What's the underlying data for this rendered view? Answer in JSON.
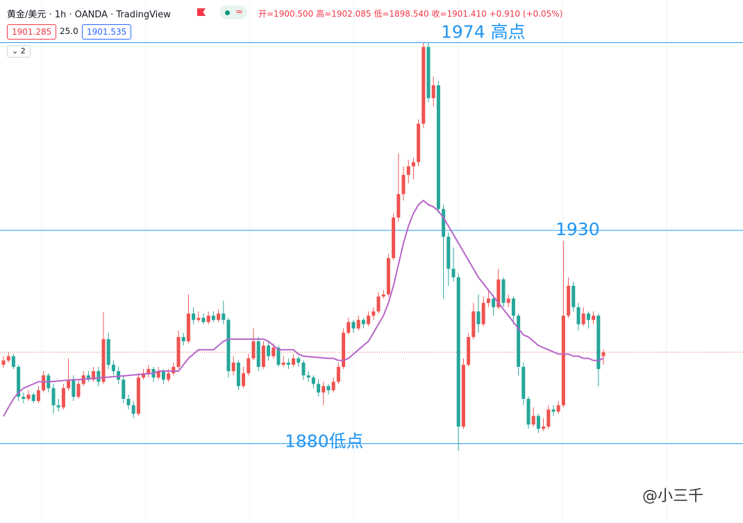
{
  "header": {
    "symbol": "黄金/美元 · 1h · OANDA · TradingView",
    "ohlc": [
      "开=1900.500",
      "高=1902.085",
      "低=1898.540",
      "收=1901.410",
      "+0.910 (+0.05%)"
    ],
    "bid": "1901.285",
    "spread": "25.0",
    "ask": "1901.535",
    "indicators": "2"
  },
  "watermark": "@小三千",
  "chart_data": {
    "type": "candlestick",
    "ylim": [
      1861.4,
      1984
    ],
    "up_color": "#ef5350",
    "down_color": "#26a69a",
    "candles": [
      [
        1898.5,
        1900.5,
        1897.8,
        1899.5
      ],
      [
        1899.5,
        1901.5,
        1899,
        1900.5
      ],
      [
        1900.5,
        1901,
        1897.5,
        1898
      ],
      [
        1898,
        1898.5,
        1890,
        1891
      ],
      [
        1891,
        1892,
        1889.5,
        1890.5
      ],
      [
        1890.5,
        1892.5,
        1890,
        1891.5
      ],
      [
        1891.5,
        1892,
        1889.5,
        1890
      ],
      [
        1890,
        1893.5,
        1889.5,
        1892.5
      ],
      [
        1892.5,
        1897,
        1892,
        1896
      ],
      [
        1896,
        1896.5,
        1892,
        1893
      ],
      [
        1893,
        1894,
        1887,
        1889
      ],
      [
        1889,
        1890.5,
        1887.5,
        1888.5
      ],
      [
        1888.5,
        1894,
        1888,
        1893
      ],
      [
        1893,
        1900,
        1892.5,
        1895
      ],
      [
        1895,
        1896,
        1890,
        1891
      ],
      [
        1891,
        1895,
        1890.5,
        1894
      ],
      [
        1894,
        1897,
        1893.5,
        1896
      ],
      [
        1896,
        1897,
        1894.5,
        1895
      ],
      [
        1895,
        1898,
        1894.5,
        1897
      ],
      [
        1897,
        1898,
        1893.5,
        1894.5
      ],
      [
        1894.5,
        1910.8,
        1894,
        1904.5
      ],
      [
        1904.5,
        1906,
        1897.5,
        1898.5
      ],
      [
        1898.5,
        1899.5,
        1896,
        1897
      ],
      [
        1897,
        1898,
        1894,
        1895
      ],
      [
        1895,
        1896,
        1889.5,
        1890.5
      ],
      [
        1890.5,
        1891.5,
        1888,
        1889
      ],
      [
        1889,
        1890,
        1886,
        1887
      ],
      [
        1887,
        1896.5,
        1886.5,
        1895.5
      ],
      [
        1895.5,
        1897.5,
        1895,
        1896.5
      ],
      [
        1896.5,
        1898.5,
        1895.5,
        1897.5
      ],
      [
        1897.5,
        1898,
        1894.5,
        1895.5
      ],
      [
        1895.5,
        1898,
        1895,
        1897
      ],
      [
        1897,
        1897.5,
        1894,
        1895
      ],
      [
        1895,
        1897.5,
        1894.5,
        1896.5
      ],
      [
        1896.5,
        1899,
        1896,
        1898
      ],
      [
        1898,
        1906.5,
        1897.5,
        1905
      ],
      [
        1905,
        1906,
        1903,
        1904
      ],
      [
        1904,
        1915,
        1903.5,
        1910.5
      ],
      [
        1910.5,
        1912,
        1908,
        1909
      ],
      [
        1909,
        1911,
        1908.5,
        1909.5
      ],
      [
        1909.5,
        1910.5,
        1908,
        1908.5
      ],
      [
        1908.5,
        1911,
        1908,
        1910
      ],
      [
        1910,
        1911,
        1908.5,
        1909
      ],
      [
        1909,
        1911.5,
        1908.5,
        1910.5
      ],
      [
        1910.5,
        1913.5,
        1908,
        1909
      ],
      [
        1909,
        1909.5,
        1895.5,
        1897
      ],
      [
        1897,
        1900.5,
        1896,
        1899
      ],
      [
        1899,
        1899.5,
        1892.5,
        1893.5
      ],
      [
        1893.5,
        1898,
        1893,
        1896.5
      ],
      [
        1896.5,
        1901,
        1896,
        1900
      ],
      [
        1900,
        1907,
        1899.5,
        1904
      ],
      [
        1904,
        1905,
        1897,
        1898
      ],
      [
        1898,
        1904,
        1897.5,
        1903
      ],
      [
        1903,
        1904,
        1899.5,
        1900.5
      ],
      [
        1900.5,
        1903.5,
        1900,
        1902.5
      ],
      [
        1902.5,
        1903,
        1898,
        1898.5
      ],
      [
        1898.5,
        1900.5,
        1898,
        1899
      ],
      [
        1899,
        1900,
        1897.5,
        1898.5
      ],
      [
        1898.5,
        1901,
        1898,
        1900
      ],
      [
        1900,
        1900.5,
        1898,
        1899
      ],
      [
        1899,
        1899.5,
        1895,
        1896
      ],
      [
        1896,
        1897,
        1894.5,
        1895.5
      ],
      [
        1895.5,
        1896,
        1893,
        1894
      ],
      [
        1894,
        1895,
        1891,
        1892
      ],
      [
        1892,
        1894.5,
        1889,
        1893.5
      ],
      [
        1893.5,
        1894,
        1891.5,
        1892.5
      ],
      [
        1892.5,
        1895.5,
        1892,
        1894.5
      ],
      [
        1894.5,
        1899,
        1894,
        1898
      ],
      [
        1898,
        1907,
        1897.5,
        1906
      ],
      [
        1906,
        1909.5,
        1905.5,
        1908.5
      ],
      [
        1908.5,
        1909,
        1906,
        1907
      ],
      [
        1907,
        1910,
        1906.5,
        1909
      ],
      [
        1909,
        1909.5,
        1907,
        1908
      ],
      [
        1908,
        1911,
        1907.5,
        1910
      ],
      [
        1910,
        1912,
        1909,
        1911
      ],
      [
        1911,
        1915.5,
        1910.5,
        1914.5
      ],
      [
        1914.5,
        1916,
        1914,
        1915
      ],
      [
        1915,
        1924.5,
        1914.5,
        1923.5
      ],
      [
        1923.5,
        1934,
        1923,
        1933
      ],
      [
        1933,
        1948,
        1932,
        1938.5
      ],
      [
        1938.5,
        1945,
        1937,
        1943
      ],
      [
        1943,
        1946.5,
        1941,
        1945
      ],
      [
        1945,
        1947,
        1942,
        1946
      ],
      [
        1946,
        1956,
        1945,
        1955
      ],
      [
        1955,
        1974,
        1954,
        1973
      ],
      [
        1973,
        1974,
        1960,
        1961
      ],
      [
        1961,
        1966,
        1959,
        1964
      ],
      [
        1964,
        1965,
        1934,
        1935
      ],
      [
        1935,
        1936,
        1914,
        1928.5
      ],
      [
        1928.5,
        1929.5,
        1917,
        1921
      ],
      [
        1921,
        1926,
        1918,
        1919
      ],
      [
        1919,
        1920,
        1878.3,
        1884
      ],
      [
        1884,
        1900,
        1883.5,
        1898.5
      ],
      [
        1898.5,
        1906,
        1898,
        1905
      ],
      [
        1905,
        1913,
        1904.5,
        1911
      ],
      [
        1911,
        1915,
        1906,
        1908
      ],
      [
        1908,
        1914.5,
        1907.5,
        1913
      ],
      [
        1913,
        1916,
        1912,
        1914
      ],
      [
        1914,
        1915,
        1910,
        1912
      ],
      [
        1912,
        1921,
        1911.5,
        1918.5
      ],
      [
        1918.5,
        1919,
        1912,
        1913
      ],
      [
        1913,
        1915,
        1912,
        1914
      ],
      [
        1914,
        1914.5,
        1908,
        1910
      ],
      [
        1910,
        1910.5,
        1896,
        1898
      ],
      [
        1898,
        1899,
        1889,
        1890.5
      ],
      [
        1890.5,
        1891,
        1883.5,
        1884.5
      ],
      [
        1884.5,
        1888.5,
        1884,
        1886.5
      ],
      [
        1886.5,
        1887,
        1882.5,
        1883.5
      ],
      [
        1883.5,
        1886,
        1883,
        1884
      ],
      [
        1884,
        1889,
        1883.5,
        1888
      ],
      [
        1888,
        1889,
        1886.5,
        1887.5
      ],
      [
        1887.5,
        1890,
        1887,
        1889
      ],
      [
        1889,
        1927.5,
        1888.5,
        1910
      ],
      [
        1910,
        1919,
        1909.5,
        1917
      ],
      [
        1917,
        1918,
        1911,
        1912
      ],
      [
        1912,
        1913,
        1906.5,
        1908
      ],
      [
        1908,
        1912,
        1907.5,
        1910.5
      ],
      [
        1910.5,
        1911,
        1907,
        1909
      ],
      [
        1909,
        1911,
        1908,
        1910
      ],
      [
        1910,
        1910.5,
        1893.5,
        1897.5
      ],
      [
        1900.5,
        1902.085,
        1898.54,
        1901.41
      ]
    ],
    "ma": {
      "color": "#b763c9",
      "values": [
        1886.4,
        1888.5,
        1890.5,
        1892,
        1893,
        1893.5,
        1894,
        1894.5,
        1894.5,
        1894.5,
        1894.6,
        1894.7,
        1894.8,
        1894.9,
        1895,
        1895,
        1895.1,
        1895.2,
        1895.3,
        1895.4,
        1895.5,
        1895.6,
        1895.7,
        1895.8,
        1895.9,
        1896,
        1896.1,
        1896.2,
        1896.3,
        1896.4,
        1896.5,
        1897,
        1897,
        1897,
        1897,
        1897,
        1898.5,
        1900,
        1901,
        1902,
        1902,
        1902,
        1902,
        1903,
        1904,
        1904.5,
        1904.5,
        1904.5,
        1904.5,
        1904.5,
        1904.5,
        1904.5,
        1904.5,
        1904,
        1903,
        1902,
        1902,
        1902,
        1902,
        1901,
        1900.5,
        1900.4,
        1900.3,
        1900.2,
        1900.1,
        1900,
        1900,
        1899.5,
        1899.5,
        1900,
        1901,
        1902,
        1903,
        1904,
        1906,
        1908,
        1910,
        1913,
        1917,
        1922,
        1927,
        1931,
        1934,
        1936,
        1937,
        1936,
        1935.5,
        1934.5,
        1933,
        1931,
        1929,
        1927,
        1925,
        1923,
        1921,
        1919,
        1917.5,
        1916,
        1914.5,
        1913,
        1911.5,
        1910,
        1908.5,
        1907,
        1905.5,
        1905,
        1904,
        1903,
        1902.5,
        1902,
        1901.5,
        1901,
        1901,
        1901,
        1900.5,
        1900.5,
        1900,
        1900,
        1899.5,
        1899.5,
        1900
      ]
    },
    "levels": {
      "color": "#2196f3",
      "items": [
        {
          "value": 1974,
          "label": "1974 高点"
        },
        {
          "value": 1930,
          "label": "1930"
        },
        {
          "value": 1880,
          "label": "1880低点"
        }
      ]
    },
    "last_price": 1901.41
  }
}
